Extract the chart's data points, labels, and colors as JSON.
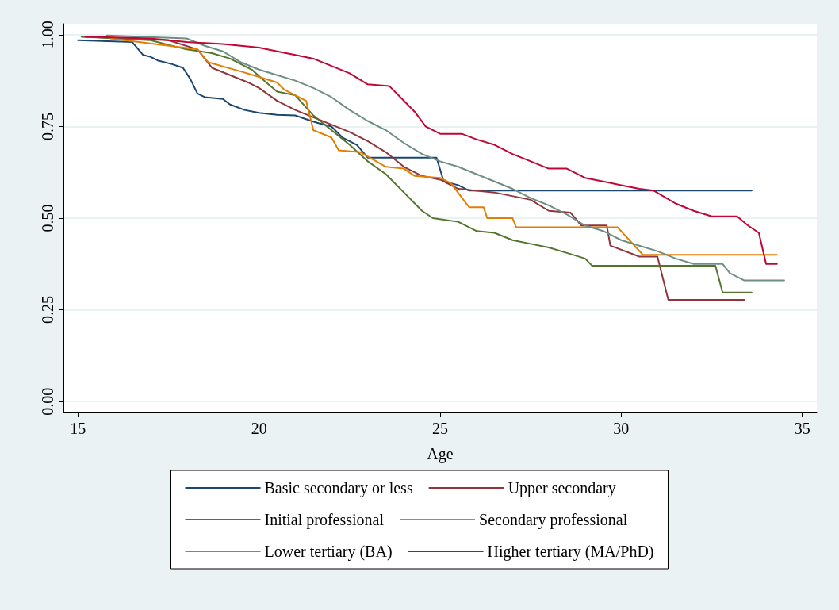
{
  "chart_data": {
    "type": "line",
    "xlabel": "Age",
    "xlim": [
      14.6,
      35.4
    ],
    "xticks": [
      15,
      20,
      25,
      30,
      35
    ],
    "ylim": [
      -0.03,
      1.03
    ],
    "yticks": [
      {
        "value": 0,
        "label": "0.00"
      },
      {
        "value": 0.25,
        "label": "0.25"
      },
      {
        "value": 0.5,
        "label": "0.50"
      },
      {
        "value": 0.75,
        "label": "0.75"
      },
      {
        "value": 1,
        "label": "1.00"
      }
    ],
    "grid": "y",
    "legend": "bottom",
    "marker": "none",
    "line_style": "solid",
    "series": [
      {
        "name": "Basic secondary or less",
        "color": "#1a476f",
        "x": [
          15.0,
          16.5,
          16.8,
          17.0,
          17.2,
          17.6,
          17.9,
          18.1,
          18.3,
          18.5,
          19.0,
          19.2,
          19.6,
          20.0,
          20.5,
          21.0,
          21.3,
          21.6,
          22.0,
          22.3,
          22.7,
          23.0,
          24.9,
          25.1,
          25.5,
          25.8,
          33.6
        ],
        "values": [
          0.985,
          0.98,
          0.945,
          0.94,
          0.93,
          0.92,
          0.91,
          0.88,
          0.84,
          0.83,
          0.825,
          0.81,
          0.795,
          0.787,
          0.782,
          0.78,
          0.77,
          0.76,
          0.75,
          0.72,
          0.7,
          0.665,
          0.665,
          0.6,
          0.59,
          0.575,
          0.575
        ]
      },
      {
        "name": "Upper secondary",
        "color": "#90353b",
        "x": [
          15.1,
          17.5,
          18.3,
          18.7,
          19.2,
          19.7,
          20.0,
          20.5,
          21.0,
          21.5,
          22.0,
          22.5,
          23.0,
          23.5,
          24.0,
          24.5,
          25.0,
          25.5,
          26.5,
          27.5,
          28.0,
          28.6,
          28.9,
          29.6,
          29.7,
          30.5,
          31.0,
          31.3,
          33.4
        ],
        "values": [
          0.995,
          0.985,
          0.96,
          0.91,
          0.89,
          0.87,
          0.855,
          0.82,
          0.795,
          0.775,
          0.755,
          0.735,
          0.71,
          0.68,
          0.64,
          0.615,
          0.605,
          0.58,
          0.57,
          0.55,
          0.52,
          0.515,
          0.48,
          0.48,
          0.425,
          0.395,
          0.395,
          0.277,
          0.277
        ]
      },
      {
        "name": "Initial professional",
        "color": "#55752f",
        "x": [
          15.1,
          17.0,
          18.0,
          18.7,
          19.2,
          19.8,
          20.2,
          20.5,
          21.0,
          21.5,
          22.0,
          22.5,
          23.0,
          23.5,
          24.0,
          24.5,
          24.8,
          25.5,
          26.0,
          26.5,
          27.0,
          27.5,
          28.0,
          28.5,
          29.0,
          29.2,
          32.6,
          32.8,
          33.6
        ],
        "values": [
          0.995,
          0.985,
          0.96,
          0.95,
          0.935,
          0.905,
          0.87,
          0.845,
          0.835,
          0.78,
          0.74,
          0.7,
          0.655,
          0.62,
          0.57,
          0.52,
          0.5,
          0.49,
          0.465,
          0.46,
          0.44,
          0.43,
          0.42,
          0.405,
          0.39,
          0.37,
          0.37,
          0.297,
          0.297
        ]
      },
      {
        "name": "Secondary professional",
        "color": "#e37e00",
        "x": [
          15.9,
          18.3,
          18.6,
          19.5,
          20.0,
          20.5,
          20.7,
          21.3,
          21.5,
          22.0,
          22.2,
          22.8,
          23.5,
          24.0,
          24.3,
          25.0,
          25.3,
          25.8,
          26.2,
          26.3,
          27.0,
          27.1,
          29.9,
          30.6,
          34.3
        ],
        "values": [
          0.99,
          0.96,
          0.925,
          0.9,
          0.885,
          0.87,
          0.85,
          0.82,
          0.74,
          0.72,
          0.685,
          0.68,
          0.64,
          0.635,
          0.615,
          0.61,
          0.595,
          0.53,
          0.53,
          0.5,
          0.5,
          0.475,
          0.475,
          0.4,
          0.4
        ]
      },
      {
        "name": "Lower tertiary (BA)",
        "color": "#6e8e84",
        "x": [
          15.8,
          18.0,
          18.5,
          19.0,
          19.5,
          20.0,
          20.5,
          21.0,
          21.5,
          22.0,
          22.5,
          23.0,
          23.5,
          24.0,
          24.5,
          25.0,
          25.5,
          26.0,
          26.5,
          27.0,
          27.5,
          28.0,
          28.5,
          29.0,
          29.5,
          30.0,
          30.5,
          31.0,
          31.5,
          32.0,
          32.8,
          33.0,
          33.4,
          34.5
        ],
        "values": [
          0.998,
          0.99,
          0.97,
          0.955,
          0.925,
          0.905,
          0.89,
          0.875,
          0.855,
          0.83,
          0.795,
          0.765,
          0.74,
          0.705,
          0.675,
          0.655,
          0.64,
          0.62,
          0.6,
          0.58,
          0.555,
          0.535,
          0.51,
          0.48,
          0.465,
          0.44,
          0.425,
          0.41,
          0.39,
          0.375,
          0.375,
          0.35,
          0.33,
          0.33
        ]
      },
      {
        "name": "Higher tertiary (MA/PhD)",
        "color": "#c10534",
        "x": [
          15.2,
          17.0,
          18.0,
          19.0,
          20.0,
          20.5,
          21.0,
          21.5,
          22.0,
          22.5,
          23.0,
          23.6,
          24.0,
          24.3,
          24.6,
          25.0,
          25.6,
          26.0,
          26.5,
          27.0,
          27.5,
          28.0,
          28.5,
          29.0,
          29.5,
          30.0,
          30.5,
          30.9,
          31.5,
          32.0,
          32.5,
          33.2,
          33.5,
          33.8,
          34.0,
          34.3
        ],
        "values": [
          0.995,
          0.99,
          0.98,
          0.975,
          0.965,
          0.955,
          0.945,
          0.935,
          0.915,
          0.895,
          0.865,
          0.86,
          0.82,
          0.79,
          0.75,
          0.73,
          0.73,
          0.715,
          0.7,
          0.675,
          0.655,
          0.635,
          0.635,
          0.61,
          0.6,
          0.59,
          0.58,
          0.575,
          0.54,
          0.52,
          0.505,
          0.505,
          0.48,
          0.46,
          0.375,
          0.375
        ]
      }
    ]
  }
}
